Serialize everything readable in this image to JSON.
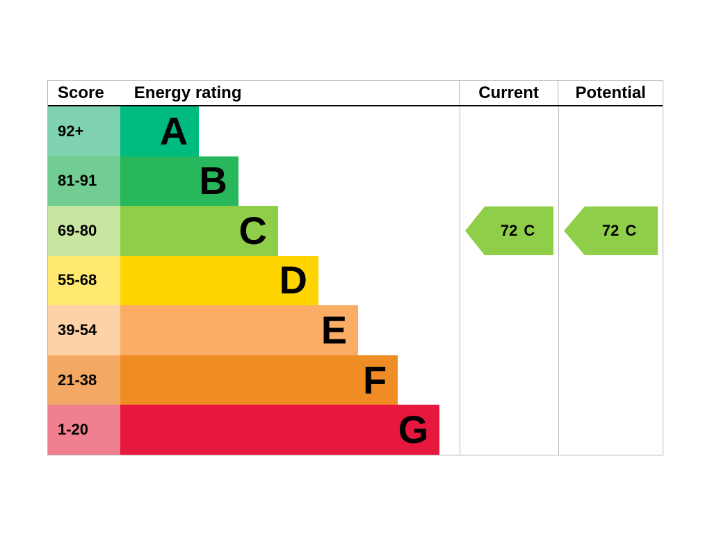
{
  "header": {
    "score": "Score",
    "energy_rating": "Energy rating",
    "current": "Current",
    "potential": "Potential"
  },
  "bands": [
    {
      "range": "92+",
      "letter": "A",
      "bar_color": "#00bb80",
      "tint_color": "#7fd3b1",
      "bar_width_pct": 23.2
    },
    {
      "range": "81-91",
      "letter": "B",
      "bar_color": "#28b75a",
      "tint_color": "#71cd92",
      "bar_width_pct": 34.8
    },
    {
      "range": "69-80",
      "letter": "C",
      "bar_color": "#8fce49",
      "tint_color": "#c8e6a0",
      "bar_width_pct": 46.5
    },
    {
      "range": "55-68",
      "letter": "D",
      "bar_color": "#ffd500",
      "tint_color": "#ffe970",
      "bar_width_pct": 58.4
    },
    {
      "range": "39-54",
      "letter": "E",
      "bar_color": "#fbad66",
      "tint_color": "#fcd2a6",
      "bar_width_pct": 70.1
    },
    {
      "range": "21-38",
      "letter": "F",
      "bar_color": "#ef8d24",
      "tint_color": "#f3a963",
      "bar_width_pct": 81.8
    },
    {
      "range": "1-20",
      "letter": "G",
      "bar_color": "#e7173d",
      "tint_color": "#f0808f",
      "bar_width_pct": 94.1
    }
  ],
  "current": {
    "value": "72",
    "letter": "C",
    "arrow_color": "#8fce49"
  },
  "potential": {
    "value": "72",
    "letter": "C",
    "arrow_color": "#8fce49"
  },
  "chart_data": {
    "type": "bar",
    "title": "Energy rating",
    "categories": [
      "A",
      "B",
      "C",
      "D",
      "E",
      "F",
      "G"
    ],
    "score_ranges": [
      "92+",
      "81-91",
      "69-80",
      "55-68",
      "39-54",
      "21-38",
      "1-20"
    ],
    "bar_width_pct": [
      23.2,
      34.8,
      46.5,
      58.4,
      70.1,
      81.8,
      94.1
    ],
    "columns": [
      "Score",
      "Energy rating",
      "Current",
      "Potential"
    ],
    "current": {
      "value": 72,
      "band": "C"
    },
    "potential": {
      "value": 72,
      "band": "C"
    },
    "legend_position": "none",
    "grid": false
  }
}
